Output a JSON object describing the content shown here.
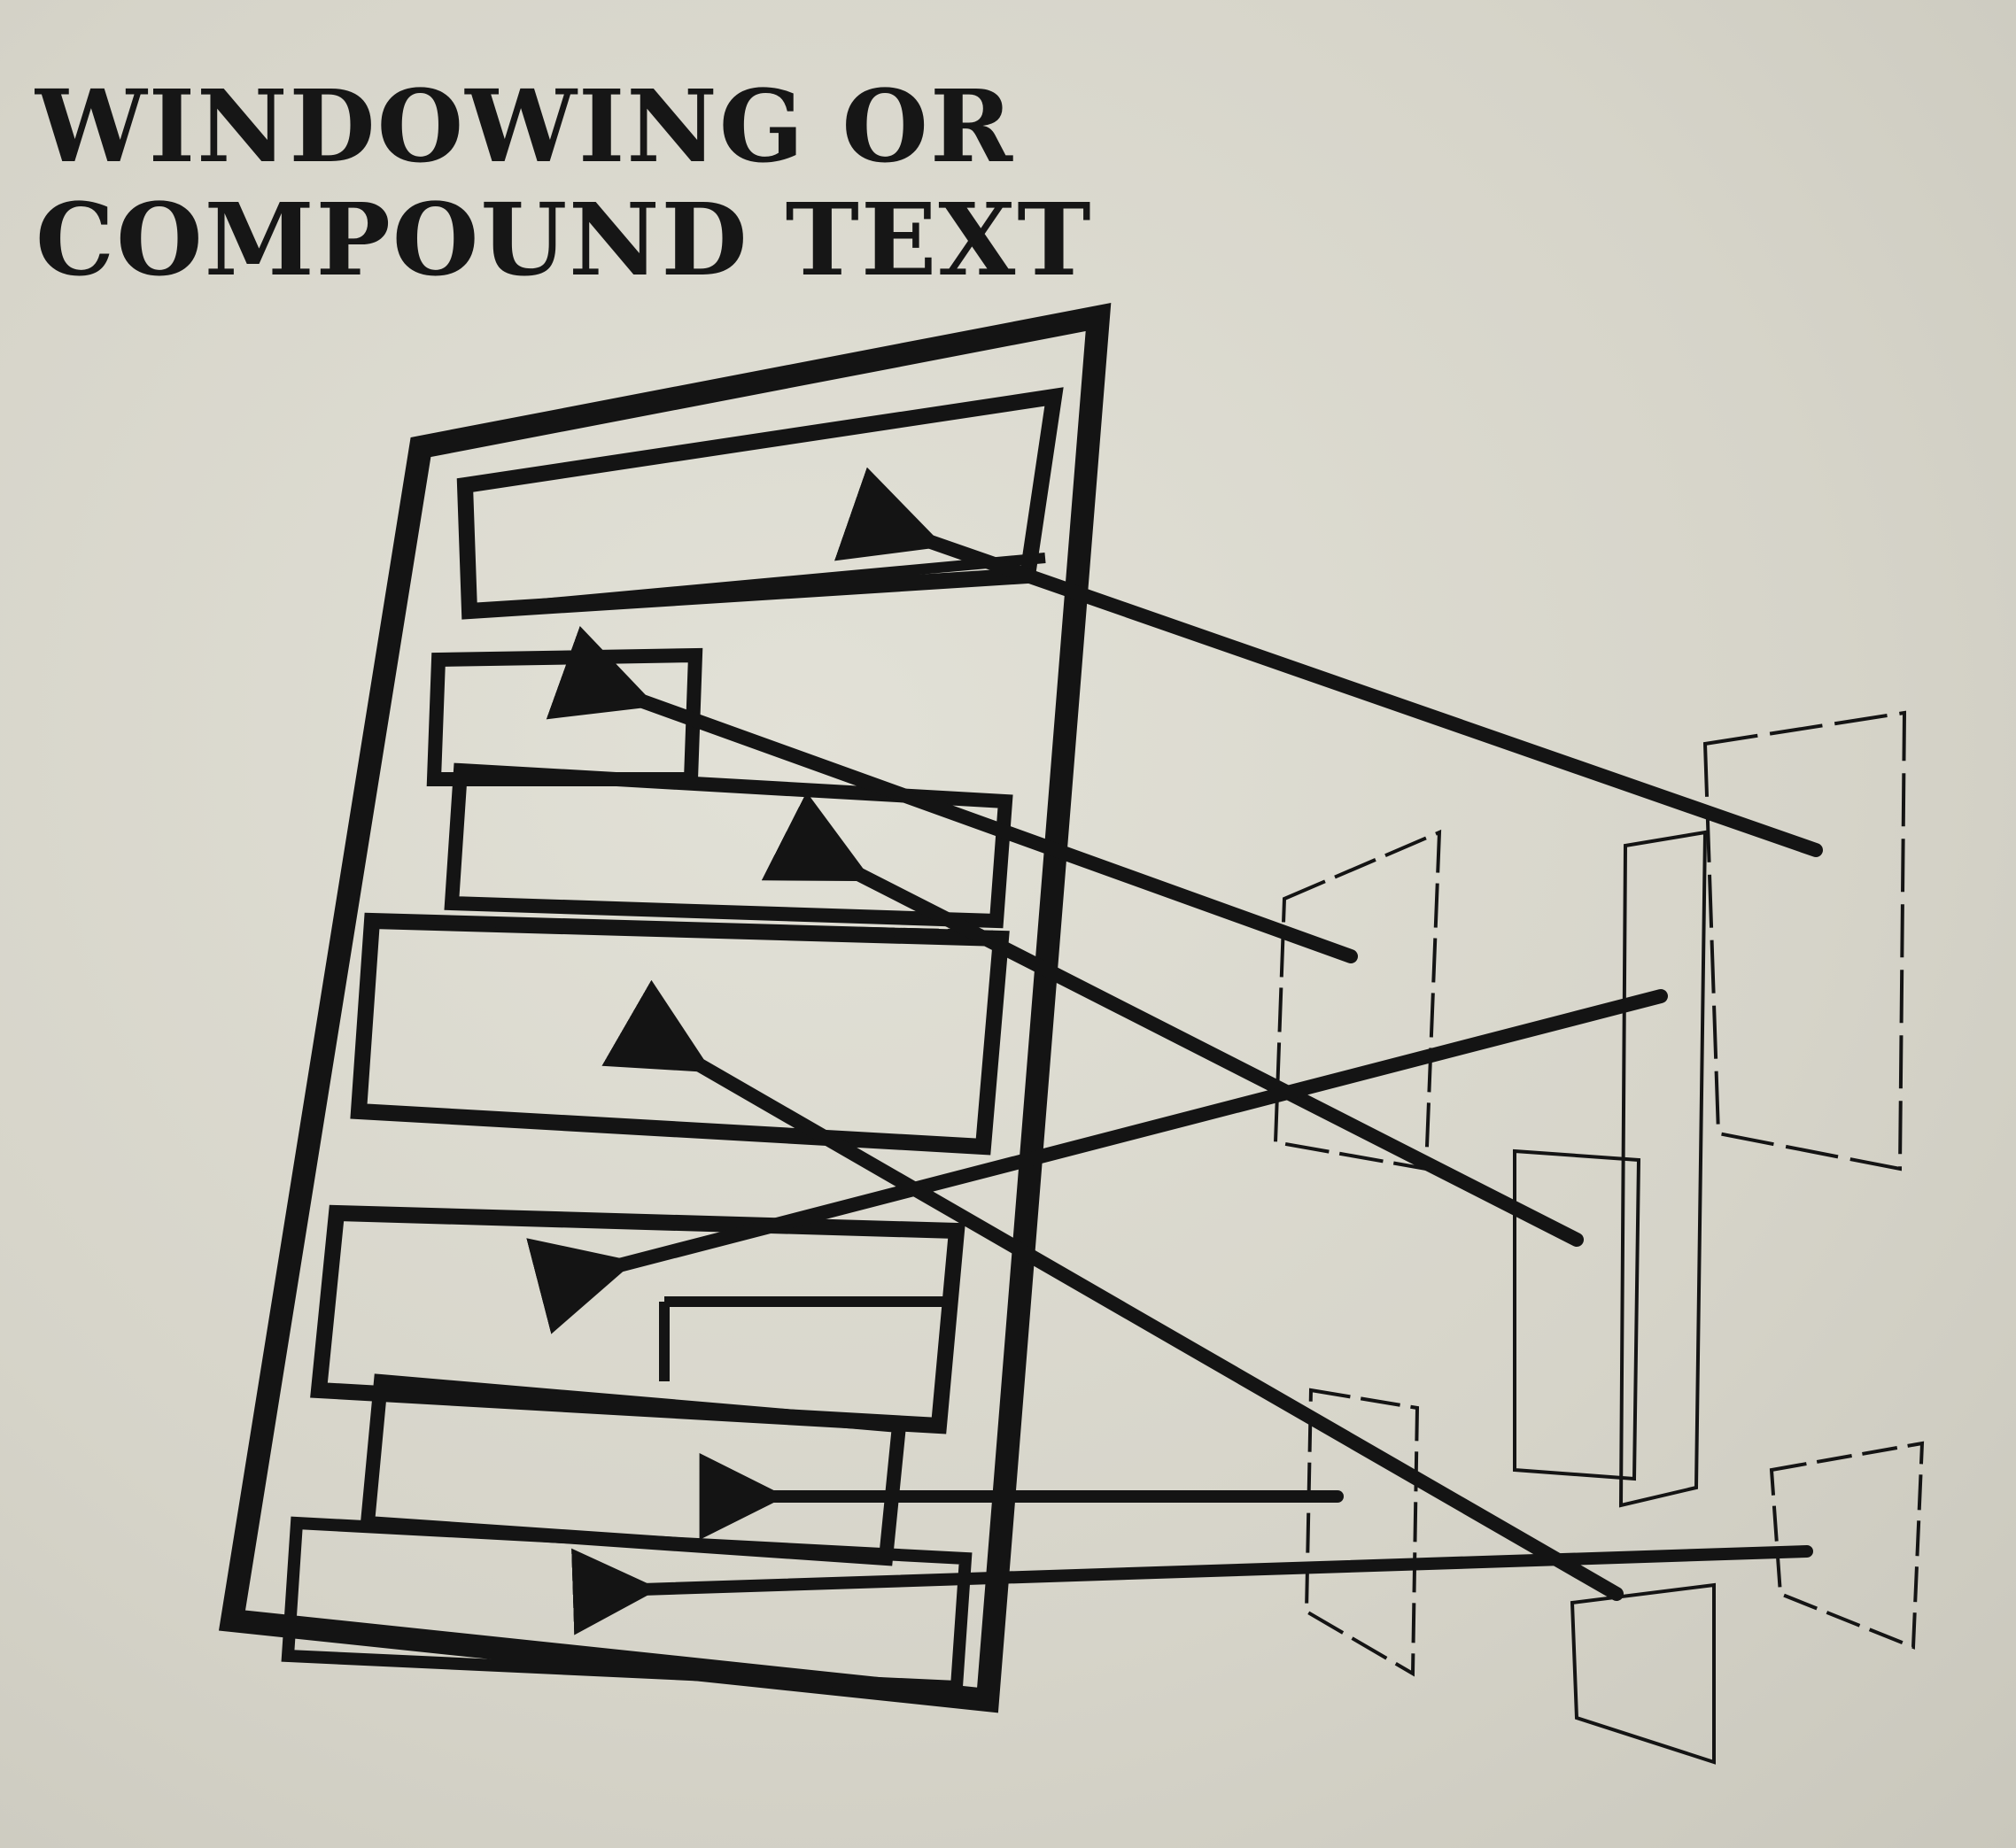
{
  "heading": {
    "line1": "WINDOWING OR",
    "line2": "COMPOUND TEXT"
  },
  "colors": {
    "paper": "#dcdad0",
    "ink": "#141414"
  }
}
